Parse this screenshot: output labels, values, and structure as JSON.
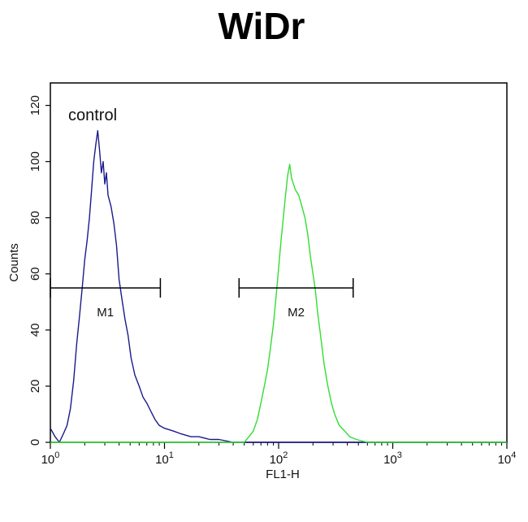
{
  "chart_data": {
    "type": "line",
    "title": "WiDr",
    "xlabel": "FL1-H",
    "ylabel": "Counts",
    "x_scale": "log",
    "xlim": [
      1,
      10000
    ],
    "ylim": [
      0,
      128
    ],
    "x_ticks": [
      {
        "value": 1,
        "base": "10",
        "exp": "0"
      },
      {
        "value": 10,
        "base": "10",
        "exp": "1"
      },
      {
        "value": 100,
        "base": "10",
        "exp": "2"
      },
      {
        "value": 1000,
        "base": "10",
        "exp": "3"
      },
      {
        "value": 10000,
        "base": "10",
        "exp": "4"
      }
    ],
    "y_ticks": [
      0,
      20,
      40,
      60,
      80,
      100,
      120
    ],
    "annotation": "control",
    "series": [
      {
        "color": "#1a1a8c",
        "points": [
          [
            1.0,
            5
          ],
          [
            1.1,
            2
          ],
          [
            1.2,
            0
          ],
          [
            1.3,
            3
          ],
          [
            1.4,
            6
          ],
          [
            1.5,
            12
          ],
          [
            1.6,
            22
          ],
          [
            1.7,
            35
          ],
          [
            1.8,
            45
          ],
          [
            1.9,
            55
          ],
          [
            2.0,
            65
          ],
          [
            2.1,
            72
          ],
          [
            2.2,
            80
          ],
          [
            2.3,
            90
          ],
          [
            2.4,
            100
          ],
          [
            2.5,
            106
          ],
          [
            2.6,
            111
          ],
          [
            2.7,
            104
          ],
          [
            2.8,
            96
          ],
          [
            2.9,
            100
          ],
          [
            3.0,
            92
          ],
          [
            3.1,
            96
          ],
          [
            3.2,
            88
          ],
          [
            3.4,
            84
          ],
          [
            3.6,
            78
          ],
          [
            3.8,
            70
          ],
          [
            4.0,
            58
          ],
          [
            4.2,
            52
          ],
          [
            4.5,
            44
          ],
          [
            4.8,
            38
          ],
          [
            5.1,
            30
          ],
          [
            5.5,
            24
          ],
          [
            6.0,
            20
          ],
          [
            6.5,
            16
          ],
          [
            7.0,
            14
          ],
          [
            7.6,
            11
          ],
          [
            8.3,
            8
          ],
          [
            9.0,
            6
          ],
          [
            10,
            5
          ],
          [
            12,
            4
          ],
          [
            14,
            3
          ],
          [
            17,
            2
          ],
          [
            20,
            2
          ],
          [
            25,
            1
          ],
          [
            30,
            1
          ],
          [
            40,
            0
          ],
          [
            60,
            0
          ],
          [
            100,
            0
          ],
          [
            300,
            0
          ],
          [
            1000,
            0
          ],
          [
            10000,
            0
          ]
        ]
      },
      {
        "color": "#33dd33",
        "points": [
          [
            1.0,
            0
          ],
          [
            10,
            0
          ],
          [
            30,
            0
          ],
          [
            50,
            0
          ],
          [
            55,
            2
          ],
          [
            60,
            4
          ],
          [
            65,
            8
          ],
          [
            70,
            14
          ],
          [
            75,
            20
          ],
          [
            80,
            26
          ],
          [
            85,
            34
          ],
          [
            90,
            42
          ],
          [
            95,
            52
          ],
          [
            100,
            62
          ],
          [
            105,
            72
          ],
          [
            110,
            80
          ],
          [
            115,
            88
          ],
          [
            120,
            95
          ],
          [
            125,
            99
          ],
          [
            130,
            94
          ],
          [
            135,
            92
          ],
          [
            140,
            90
          ],
          [
            150,
            88
          ],
          [
            160,
            84
          ],
          [
            170,
            80
          ],
          [
            180,
            74
          ],
          [
            190,
            66
          ],
          [
            200,
            60
          ],
          [
            210,
            54
          ],
          [
            220,
            46
          ],
          [
            230,
            40
          ],
          [
            240,
            34
          ],
          [
            250,
            28
          ],
          [
            270,
            20
          ],
          [
            290,
            14
          ],
          [
            310,
            10
          ],
          [
            340,
            6
          ],
          [
            380,
            4
          ],
          [
            420,
            2
          ],
          [
            480,
            1
          ],
          [
            600,
            0
          ],
          [
            1000,
            0
          ],
          [
            10000,
            0
          ]
        ]
      }
    ],
    "markers": [
      {
        "label": "M1",
        "x_start": 1.0,
        "x_end": 9.2,
        "y": 55
      },
      {
        "label": "M2",
        "x_start": 45,
        "x_end": 450,
        "y": 55
      }
    ]
  }
}
